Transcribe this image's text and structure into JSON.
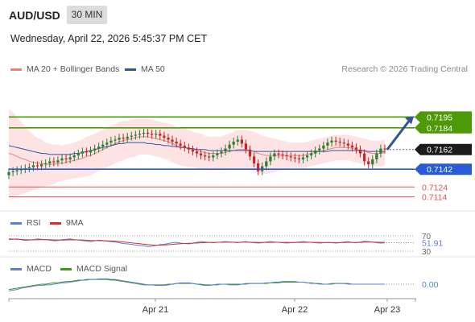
{
  "header": {
    "symbol": "AUD/USD",
    "timeframe": "30 MIN",
    "datetime": "Wednesday, April 22, 2026 5:45:37 PM CET"
  },
  "legend": {
    "ma20_label": "MA 20 + Bollinger Bands",
    "ma50_label": "MA 50",
    "rsi_label": "RSI",
    "rsi_ma_label": "9MA",
    "macd_label": "MACD",
    "macd_signal_label": "MACD Signal",
    "brand": "Research © 2026 Trading Central"
  },
  "colors": {
    "resistance": "#4e9a06",
    "support": "#2a5bd7",
    "target_red": "#e05252",
    "ma20": "#f08080",
    "ma50": "#2c5a9c",
    "bollinger_fill": "#fde3e3",
    "candle_up": "#2e7d32",
    "candle_down": "#c62828",
    "rsi": "#5b7fd6",
    "rsi_ma": "#d32f2f",
    "macd": "#5b7fd6",
    "macd_signal": "#3a9a1a"
  },
  "chart_data": [
    {
      "type": "candlestick",
      "x_ticks": [
        "Apr 21",
        "Apr 22",
        "Apr 23"
      ],
      "ylim": [
        0.7103,
        0.7232
      ],
      "levels": [
        {
          "value": 0.7195,
          "label": "0.7195",
          "role": "resistance"
        },
        {
          "value": 0.7184,
          "label": "0.7184",
          "role": "resistance"
        },
        {
          "value": 0.7162,
          "label": "0.7162",
          "role": "current"
        },
        {
          "value": 0.7142,
          "label": "0.7142",
          "role": "support"
        },
        {
          "value": 0.7124,
          "label": "0.7124",
          "role": "target"
        },
        {
          "value": 0.7114,
          "label": "0.7114",
          "role": "target"
        }
      ],
      "forecast_arrow": {
        "from": 0.7162,
        "to": 0.7195
      },
      "close": [
        0.7139,
        0.714,
        0.7141,
        0.7142,
        0.7143,
        0.7144,
        0.7146,
        0.7145,
        0.7147,
        0.7148,
        0.715,
        0.7149,
        0.7151,
        0.7153,
        0.7152,
        0.7154,
        0.7156,
        0.7158,
        0.716,
        0.7159,
        0.7161,
        0.7163,
        0.7165,
        0.7167,
        0.7169,
        0.7171,
        0.7172,
        0.7174,
        0.7173,
        0.7175,
        0.7176,
        0.7177,
        0.7178,
        0.7179,
        0.7178,
        0.7177,
        0.7178,
        0.7176,
        0.7174,
        0.7172,
        0.717,
        0.7168,
        0.7166,
        0.7164,
        0.7162,
        0.716,
        0.7158,
        0.7156,
        0.7155,
        0.7154,
        0.7156,
        0.7158,
        0.716,
        0.7163,
        0.7167,
        0.717,
        0.7172,
        0.7168,
        0.7162,
        0.7155,
        0.7148,
        0.714,
        0.7145,
        0.715,
        0.7155,
        0.7158,
        0.7157,
        0.7156,
        0.7155,
        0.7154,
        0.7153,
        0.7152,
        0.7154,
        0.7156,
        0.7158,
        0.7161,
        0.7163,
        0.7166,
        0.7169,
        0.7171,
        0.717,
        0.7169,
        0.7168,
        0.7166,
        0.7164,
        0.7162,
        0.7158,
        0.715,
        0.7147,
        0.7152,
        0.7158,
        0.7163,
        0.7162
      ],
      "open": [
        0.7136,
        0.7139,
        0.714,
        0.7141,
        0.7142,
        0.7143,
        0.7144,
        0.7146,
        0.7145,
        0.7147,
        0.7148,
        0.715,
        0.7149,
        0.7151,
        0.7153,
        0.7152,
        0.7154,
        0.7156,
        0.7158,
        0.716,
        0.7159,
        0.7161,
        0.7163,
        0.7165,
        0.7167,
        0.7169,
        0.7171,
        0.7172,
        0.7174,
        0.7173,
        0.7175,
        0.7176,
        0.7177,
        0.7178,
        0.7179,
        0.7178,
        0.7177,
        0.7178,
        0.7176,
        0.7174,
        0.7172,
        0.717,
        0.7168,
        0.7166,
        0.7164,
        0.7162,
        0.716,
        0.7158,
        0.7156,
        0.7155,
        0.7154,
        0.7156,
        0.7158,
        0.716,
        0.7163,
        0.7167,
        0.717,
        0.7172,
        0.7168,
        0.7162,
        0.7155,
        0.7148,
        0.714,
        0.7145,
        0.715,
        0.7155,
        0.7158,
        0.7157,
        0.7156,
        0.7155,
        0.7154,
        0.7153,
        0.7152,
        0.7154,
        0.7156,
        0.7158,
        0.7161,
        0.7163,
        0.7166,
        0.7169,
        0.7171,
        0.717,
        0.7169,
        0.7168,
        0.7166,
        0.7164,
        0.7162,
        0.7158,
        0.715,
        0.7147,
        0.7152,
        0.7158,
        0.7163
      ],
      "ma20": [
        0.7158,
        0.7157,
        0.7155,
        0.7153,
        0.7152,
        0.715,
        0.7149,
        0.7148,
        0.7148,
        0.7147,
        0.7147,
        0.7147,
        0.7148,
        0.7148,
        0.7149,
        0.715,
        0.7151,
        0.7152,
        0.7153,
        0.7155,
        0.7156,
        0.7158,
        0.716,
        0.7162,
        0.7164,
        0.7166,
        0.7168,
        0.717,
        0.7171,
        0.7172,
        0.7173,
        0.7174,
        0.7175,
        0.7175,
        0.7175,
        0.7174,
        0.7173,
        0.7172,
        0.7171,
        0.717,
        0.7168,
        0.7166,
        0.7165,
        0.7164,
        0.7163,
        0.7162,
        0.7161,
        0.716,
        0.7159,
        0.7158,
        0.7158,
        0.7158,
        0.7158,
        0.7159,
        0.716,
        0.7161,
        0.7162,
        0.7162,
        0.7162,
        0.7161,
        0.716,
        0.7158,
        0.7157,
        0.7156,
        0.7156,
        0.7156,
        0.7156,
        0.7156,
        0.7156,
        0.7156,
        0.7156,
        0.7156,
        0.7156,
        0.7157,
        0.7158,
        0.7159,
        0.716,
        0.7161,
        0.7162,
        0.7163,
        0.7164,
        0.7164,
        0.7164,
        0.7164,
        0.7163,
        0.7162,
        0.7161,
        0.716,
        0.7159,
        0.7158,
        0.7158,
        0.7158,
        0.7159
      ],
      "ma50": [
        0.7166,
        0.7165,
        0.7164,
        0.7163,
        0.7162,
        0.7161,
        0.716,
        0.7159,
        0.7158,
        0.7158,
        0.7157,
        0.7157,
        0.7157,
        0.7157,
        0.7157,
        0.7157,
        0.7158,
        0.7158,
        0.7159,
        0.716,
        0.7161,
        0.7162,
        0.7163,
        0.7164,
        0.7165,
        0.7166,
        0.7167,
        0.7168,
        0.7168,
        0.7169,
        0.7169,
        0.7169,
        0.7169,
        0.7169,
        0.7168,
        0.7168,
        0.7167,
        0.7167,
        0.7166,
        0.7166,
        0.7165,
        0.7165,
        0.7164,
        0.7164,
        0.7163,
        0.7163,
        0.7162,
        0.7162,
        0.7162,
        0.7161,
        0.7161,
        0.7161,
        0.7161,
        0.7161,
        0.7161,
        0.7161,
        0.7161,
        0.7161,
        0.7161,
        0.7161,
        0.716,
        0.716,
        0.716,
        0.716,
        0.716,
        0.716,
        0.716,
        0.716,
        0.716,
        0.716,
        0.716,
        0.716,
        0.716,
        0.716,
        0.716,
        0.716,
        0.716,
        0.716,
        0.716,
        0.7161,
        0.7161,
        0.7161,
        0.7161,
        0.7161,
        0.7161,
        0.7161,
        0.7161,
        0.7161,
        0.716,
        0.716,
        0.716,
        0.716,
        0.716
      ],
      "bb_width": [
        0.0045,
        0.0043,
        0.004,
        0.0037,
        0.0034,
        0.0031,
        0.0028,
        0.0026,
        0.0024,
        0.0022,
        0.0021,
        0.002,
        0.0019,
        0.0018,
        0.0018,
        0.0018,
        0.0018,
        0.0019,
        0.0019,
        0.002,
        0.002,
        0.002,
        0.002,
        0.002,
        0.002,
        0.002,
        0.002,
        0.002,
        0.002,
        0.0019,
        0.0019,
        0.0019,
        0.0018,
        0.0018,
        0.0018,
        0.0018,
        0.0018,
        0.0018,
        0.0018,
        0.0019,
        0.0019,
        0.0019,
        0.0019,
        0.0019,
        0.0019,
        0.0018,
        0.0018,
        0.0018,
        0.0017,
        0.0017,
        0.0017,
        0.0017,
        0.0017,
        0.0018,
        0.0018,
        0.0019,
        0.002,
        0.002,
        0.002,
        0.002,
        0.002,
        0.002,
        0.0019,
        0.0019,
        0.0018,
        0.0017,
        0.0016,
        0.0015,
        0.0014,
        0.0013,
        0.0013,
        0.0013,
        0.0013,
        0.0013,
        0.0013,
        0.0013,
        0.0013,
        0.0013,
        0.0013,
        0.0013,
        0.0013,
        0.0013,
        0.0013,
        0.0013,
        0.0013,
        0.0013,
        0.0013,
        0.0013,
        0.0013,
        0.0013,
        0.0013,
        0.0013,
        0.0013
      ]
    },
    {
      "type": "line",
      "name": "RSI",
      "ylim": [
        30,
        70
      ],
      "ticks": [
        "70",
        "30"
      ],
      "current_label": "51.91",
      "rsi": [
        60,
        61,
        62,
        60,
        58,
        59,
        60,
        62,
        61,
        60,
        59,
        57,
        58,
        60,
        61,
        62,
        60,
        59,
        58,
        56,
        55,
        57,
        59,
        58,
        56,
        55,
        54,
        52,
        50,
        49,
        48,
        46,
        45,
        44,
        42,
        43,
        45,
        47,
        48,
        50,
        52,
        53,
        51,
        50,
        49,
        51,
        53,
        55,
        54,
        53,
        52,
        53,
        54,
        55,
        54,
        53,
        52,
        54,
        55,
        53,
        52,
        51,
        52,
        54,
        55,
        54,
        53,
        52,
        51,
        52,
        53,
        54,
        55,
        54,
        53,
        52,
        51,
        52,
        53,
        52,
        51,
        52,
        54,
        55,
        53,
        52,
        54,
        56,
        55,
        54,
        52,
        51,
        51.91
      ],
      "rsi_ma": [
        62,
        61.5,
        61,
        60.5,
        60,
        59.8,
        59.7,
        59.8,
        60,
        60.2,
        60,
        59.6,
        59.2,
        59,
        59.2,
        59.6,
        59.8,
        59.6,
        59.2,
        58.6,
        58,
        57.6,
        57.4,
        57.2,
        57,
        56.6,
        56,
        55.2,
        54.2,
        53,
        51.8,
        50.6,
        49.4,
        48.2,
        47,
        46.2,
        45.8,
        45.8,
        46.2,
        46.8,
        47.6,
        48.6,
        49.4,
        50,
        50.4,
        50.8,
        51.2,
        51.8,
        52.4,
        52.8,
        53,
        53.1,
        53.2,
        53.4,
        53.5,
        53.4,
        53.2,
        53.3,
        53.5,
        53.4,
        53.2,
        52.9,
        52.7,
        52.8,
        53,
        53.1,
        53.1,
        53,
        52.8,
        52.6,
        52.6,
        52.8,
        53,
        53.1,
        53.1,
        53,
        52.8,
        52.7,
        52.7,
        52.6,
        52.5,
        52.4,
        52.6,
        52.9,
        53,
        52.9,
        53,
        53.3,
        53.6,
        53.6,
        53.4,
        53.1,
        52.8
      ]
    },
    {
      "type": "line",
      "name": "MACD",
      "current_label": "0.00",
      "ylim": [
        -0.0012,
        0.0012
      ],
      "macd": [
        -0.001,
        -0.0009,
        -0.0008,
        -0.0006,
        -0.0005,
        -0.0004,
        -0.0003,
        -0.0002,
        -0.0002,
        -0.0001,
        -0.0001,
        0.0,
        0.0001,
        0.0002,
        0.0002,
        0.0003,
        0.0004,
        0.0005,
        0.0006,
        0.0006,
        0.0007,
        0.0007,
        0.0008,
        0.0008,
        0.0008,
        0.0007,
        0.0007,
        0.0006,
        0.0005,
        0.0004,
        0.0003,
        0.0002,
        0.0001,
        0.0,
        -0.0001,
        -0.0001,
        -0.0002,
        -0.0002,
        -0.0002,
        -0.0001,
        0.0,
        0.0001,
        0.0002,
        0.0002,
        0.0002,
        0.0001,
        0.0,
        -0.0001,
        -0.0002,
        -0.0002,
        -0.0001,
        0.0,
        0.0,
        0.0,
        -0.0001,
        -0.0001,
        -0.0001,
        0.0,
        0.0001,
        0.0001,
        0.0001,
        0.0001,
        0.0001,
        0.0002,
        0.0002,
        0.0003,
        0.0003,
        0.0004,
        0.0004,
        0.0004,
        0.0004,
        0.0003,
        0.0003,
        0.0002,
        0.0001,
        0.0001,
        0.0,
        0.0,
        0.0,
        0.0001,
        0.0001,
        0.0001,
        0.0001,
        0.0,
        0.0,
        0.0,
        0.0,
        0.0,
        0.0,
        0.0,
        0.0,
        0.0,
        0.0
      ],
      "signal": [
        -0.0008,
        -0.0007,
        -0.0006,
        -0.0005,
        -0.0004,
        -0.0003,
        -0.0002,
        -0.0001,
        0.0,
        0.0,
        0.0001,
        0.0002,
        0.0002,
        0.0003,
        0.0004,
        0.0004,
        0.0005,
        0.0006,
        0.0006,
        0.0007,
        0.0007,
        0.0007,
        0.0007,
        0.0007,
        0.0007,
        0.0006,
        0.0006,
        0.0005,
        0.0004,
        0.0003,
        0.0002,
        0.0001,
        0.0,
        -0.0001,
        -0.0001,
        -0.0001,
        -0.0001,
        -0.0001,
        -0.0001,
        0.0,
        0.0,
        0.0001,
        0.0001,
        0.0001,
        0.0001,
        0.0001,
        0.0,
        0.0,
        -0.0001,
        -0.0001,
        -0.0001,
        -0.0001,
        0.0,
        0.0,
        0.0,
        0.0,
        0.0,
        0.0,
        0.0,
        0.0001,
        0.0001,
        0.0001,
        0.0001,
        0.0001,
        0.0002,
        0.0002,
        0.0002,
        0.0003,
        0.0003,
        0.0003,
        0.0003,
        0.0003,
        0.0003,
        0.0002,
        0.0002,
        0.0001,
        0.0001,
        0.0,
        0.0,
        0.0,
        0.0001,
        0.0001,
        0.0001,
        0.0001,
        0.0,
        0.0,
        0.0,
        0.0,
        0.0,
        0.0,
        0.0,
        0.0,
        0.0
      ]
    }
  ]
}
